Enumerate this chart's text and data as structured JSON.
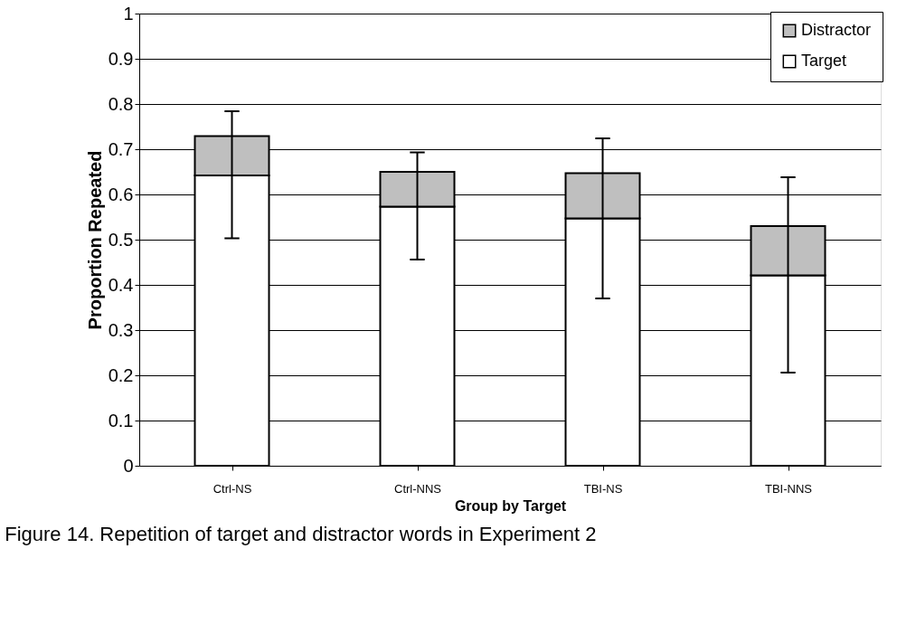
{
  "chart_data": {
    "type": "bar",
    "stacked": true,
    "xlabel": "Group by Target",
    "ylabel": "Proportion Repeated",
    "categories": [
      "Ctrl-NS",
      "Ctrl-NNS",
      "TBI-NS",
      "TBI-NNS"
    ],
    "series": [
      {
        "name": "Target",
        "color": "#ffffff",
        "values": [
          0.642,
          0.573,
          0.547,
          0.421
        ],
        "errors": [
          [
            0.503,
            0.784
          ],
          [
            0.456,
            0.693
          ],
          [
            0.37,
            0.724
          ],
          [
            0.206,
            0.638
          ]
        ]
      },
      {
        "name": "Distractor",
        "color": "#bfbfbf",
        "values": [
          0.087,
          0.077,
          0.1,
          0.109
        ]
      }
    ],
    "ylim": [
      0,
      1
    ],
    "yticks": [
      0,
      0.1,
      0.2,
      0.3,
      0.4,
      0.5,
      0.6,
      0.7,
      0.8,
      0.9,
      1
    ],
    "grid": "y",
    "legend": "top right",
    "annotations": [
      "Figure 14. Repetition of target and distractor words in Experiment 2"
    ]
  }
}
